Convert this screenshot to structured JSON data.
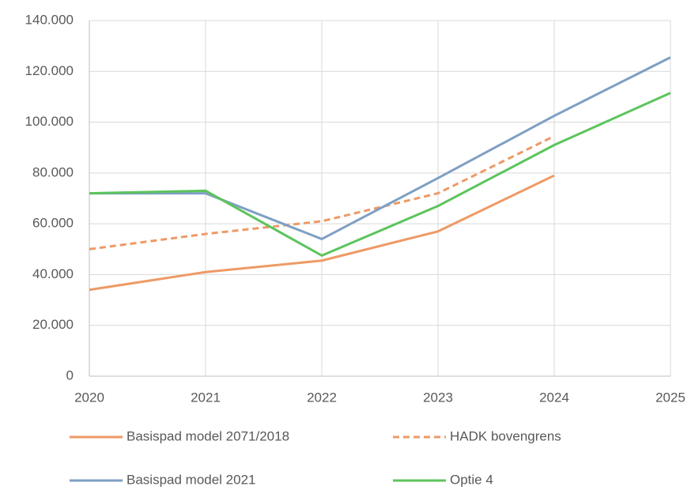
{
  "chart_data": {
    "type": "line",
    "x": [
      2020,
      2021,
      2022,
      2023,
      2024,
      2025
    ],
    "xlim": [
      2020,
      2025
    ],
    "xticks": [
      2020,
      2021,
      2022,
      2023,
      2024,
      2025
    ],
    "ylim": [
      0,
      140000
    ],
    "yticks": [
      0,
      {
        "value": 20000,
        "label": "20.000"
      },
      {
        "value": 40000,
        "label": "40.000"
      },
      {
        "value": 60000,
        "label": "60.000"
      },
      {
        "value": 80000,
        "label": "80.000"
      },
      {
        "value": 100000,
        "label": "100.000"
      },
      {
        "value": 120000,
        "label": "120.000"
      },
      {
        "value": 140000,
        "label": "140.000"
      }
    ],
    "grid": true,
    "legend": "bottom",
    "series": [
      {
        "name": "Basispad model 2071/2018",
        "color": "#ee9a66",
        "dashed": false,
        "values": [
          34000,
          41000,
          45500,
          57000,
          79000,
          null
        ]
      },
      {
        "name": "HADK bovengrens",
        "color": "#ee9a66",
        "dashed": true,
        "values": [
          50000,
          56000,
          61000,
          72000,
          94500,
          null
        ]
      },
      {
        "name": "Basispad model 2021",
        "color": "#7f9fc4",
        "dashed": false,
        "values": [
          72000,
          72000,
          54000,
          78000,
          102500,
          125500
        ]
      },
      {
        "name": "Optie 4",
        "color": "#5cc45c",
        "dashed": false,
        "values": [
          72000,
          73000,
          47500,
          67000,
          91000,
          111500
        ]
      }
    ]
  }
}
